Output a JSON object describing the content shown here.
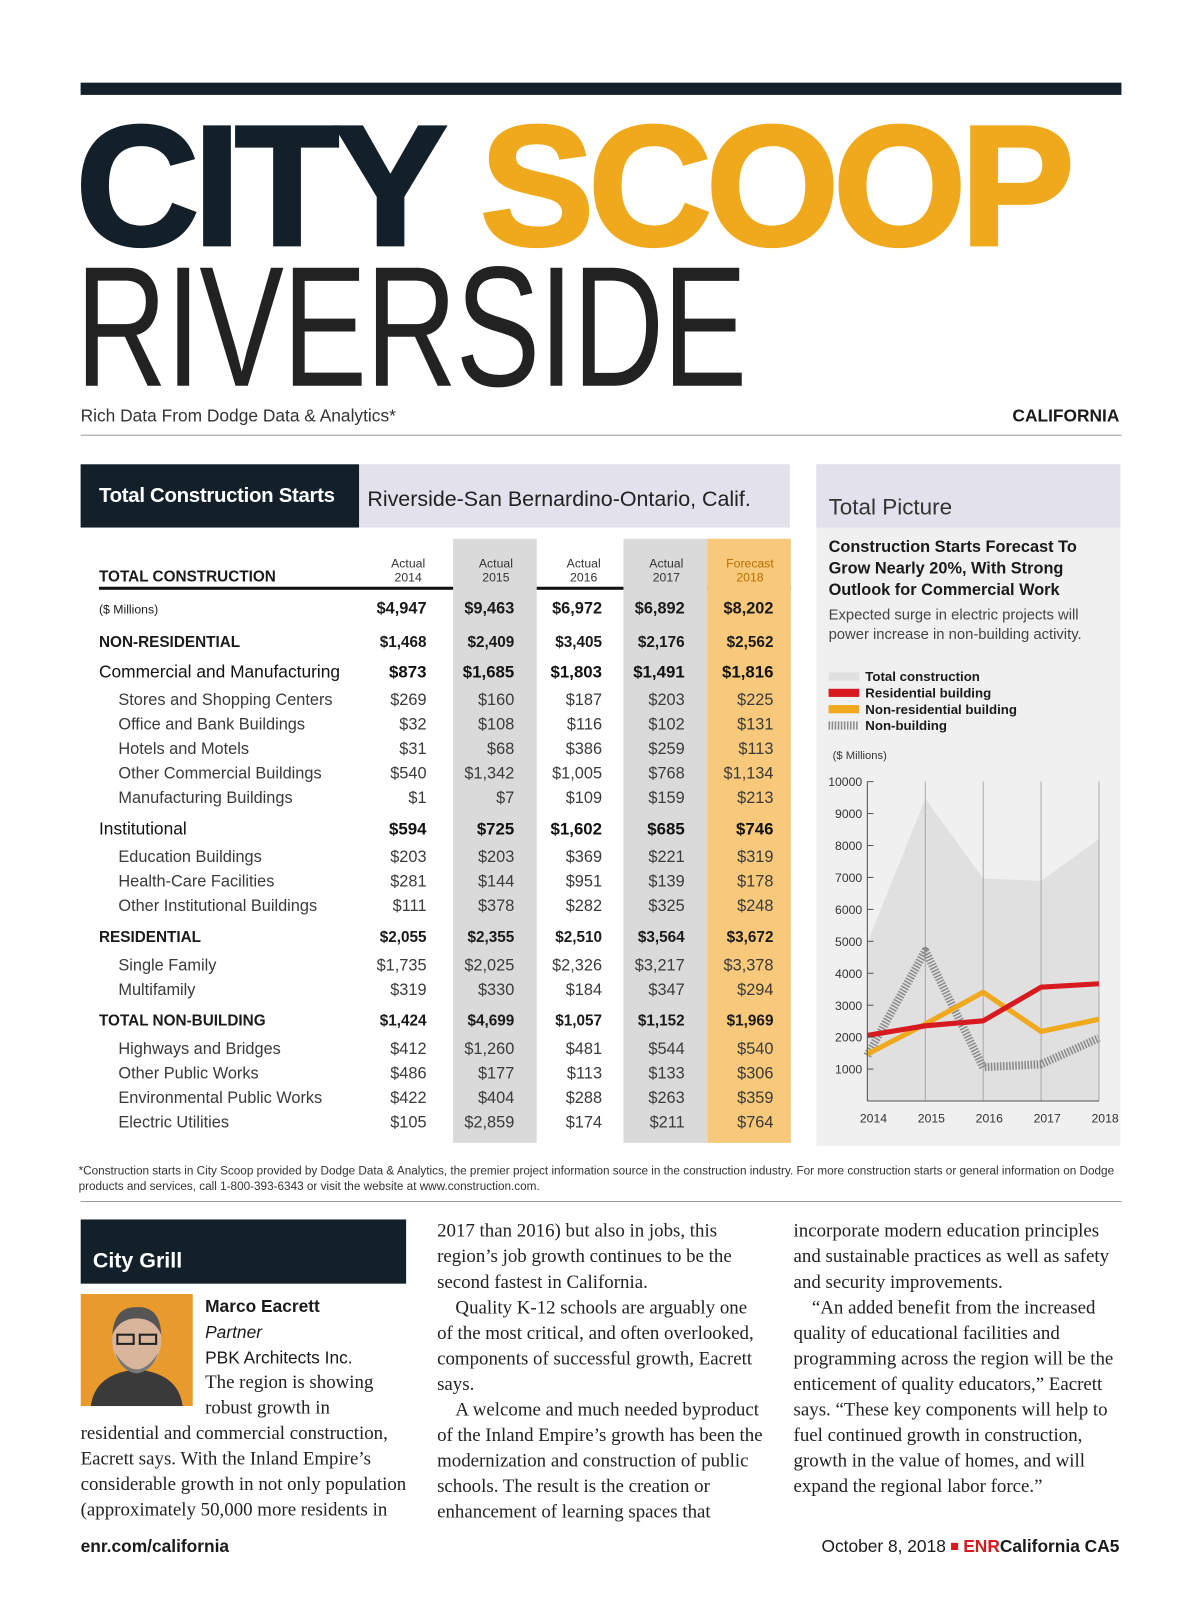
{
  "header": {
    "title_dark": "CITY",
    "title_accent": "SCOOP",
    "city": "RIVERSIDE",
    "tagline": "Rich Data From Dodge Data & Analytics*",
    "region": "CALIFORNIA"
  },
  "table": {
    "title": "Total Construction Starts",
    "region": "Riverside-San Bernardino-Ontario, Calif.",
    "columns": [
      {
        "status": "Actual",
        "year": "2014"
      },
      {
        "status": "Actual",
        "year": "2015"
      },
      {
        "status": "Actual",
        "year": "2016"
      },
      {
        "status": "Actual",
        "year": "2017"
      },
      {
        "status": "Forecast",
        "year": "2018"
      }
    ],
    "total": {
      "label": "TOTAL CONSTRUCTION",
      "unit": "($ Millions)",
      "values": [
        "$4,947",
        "$9,463",
        "$6,972",
        "$6,892",
        "$8,202"
      ]
    },
    "sections": [
      {
        "label": "NON-RESIDENTIAL",
        "values": [
          "$1,468",
          "$2,409",
          "$3,405",
          "$2,176",
          "$2,562"
        ],
        "groups": [
          {
            "label": "Commercial and Manufacturing",
            "values": [
              "$873",
              "$1,685",
              "$1,803",
              "$1,491",
              "$1,816"
            ],
            "items": [
              {
                "label": "Stores and Shopping Centers",
                "values": [
                  "$269",
                  "$160",
                  "$187",
                  "$203",
                  "$225"
                ]
              },
              {
                "label": "Office and Bank Buildings",
                "values": [
                  "$32",
                  "$108",
                  "$116",
                  "$102",
                  "$131"
                ]
              },
              {
                "label": "Hotels and Motels",
                "values": [
                  "$31",
                  "$68",
                  "$386",
                  "$259",
                  "$113"
                ]
              },
              {
                "label": "Other Commercial Buildings",
                "values": [
                  "$540",
                  "$1,342",
                  "$1,005",
                  "$768",
                  "$1,134"
                ]
              },
              {
                "label": "Manufacturing Buildings",
                "values": [
                  "$1",
                  "$7",
                  "$109",
                  "$159",
                  "$213"
                ]
              }
            ]
          },
          {
            "label": "Institutional",
            "values": [
              "$594",
              "$725",
              "$1,602",
              "$685",
              "$746"
            ],
            "items": [
              {
                "label": "Education Buildings",
                "values": [
                  "$203",
                  "$203",
                  "$369",
                  "$221",
                  "$319"
                ]
              },
              {
                "label": "Health-Care Facilities",
                "values": [
                  "$281",
                  "$144",
                  "$951",
                  "$139",
                  "$178"
                ]
              },
              {
                "label": "Other Institutional Buildings",
                "values": [
                  "$111",
                  "$378",
                  "$282",
                  "$325",
                  "$248"
                ]
              }
            ]
          }
        ]
      },
      {
        "label": "RESIDENTIAL",
        "values": [
          "$2,055",
          "$2,355",
          "$2,510",
          "$3,564",
          "$3,672"
        ],
        "items": [
          {
            "label": "Single Family",
            "values": [
              "$1,735",
              "$2,025",
              "$2,326",
              "$3,217",
              "$3,378"
            ]
          },
          {
            "label": "Multifamily",
            "values": [
              "$319",
              "$330",
              "$184",
              "$347",
              "$294"
            ]
          }
        ]
      },
      {
        "label": "TOTAL NON-BUILDING",
        "values": [
          "$1,424",
          "$4,699",
          "$1,057",
          "$1,152",
          "$1,969"
        ],
        "items": [
          {
            "label": "Highways and Bridges",
            "values": [
              "$412",
              "$1,260",
              "$481",
              "$544",
              "$540"
            ]
          },
          {
            "label": "Other Public Works",
            "values": [
              "$486",
              "$177",
              "$113",
              "$133",
              "$306"
            ]
          },
          {
            "label": "Environmental Public Works",
            "values": [
              "$422",
              "$404",
              "$288",
              "$263",
              "$359"
            ]
          },
          {
            "label": "Electric Utilities",
            "values": [
              "$105",
              "$2,859",
              "$174",
              "$211",
              "$764"
            ]
          }
        ]
      }
    ]
  },
  "chart_data": {
    "type": "line",
    "panel_title": "Total Picture",
    "title": "Construction Starts Forecast To Grow Nearly 20%, With Strong Outlook for Commercial Work",
    "subtitle": "Expected surge in electric projects will power increase in non-building activity.",
    "y_label": "($ Millions)",
    "categories": [
      "2014",
      "2015",
      "2016",
      "2017",
      "2018"
    ],
    "series": [
      {
        "name": "Total construction",
        "color": "#e0e0e0",
        "style": "area",
        "values": [
          4947,
          9463,
          6972,
          6892,
          8202
        ]
      },
      {
        "name": "Residential building",
        "color": "#d71920",
        "style": "line",
        "values": [
          2055,
          2355,
          2510,
          3564,
          3672
        ]
      },
      {
        "name": "Non-residential building",
        "color": "#f0a81c",
        "style": "line",
        "values": [
          1468,
          2409,
          3405,
          2176,
          2562
        ]
      },
      {
        "name": "Non-building",
        "color": "#8a8a8a",
        "style": "hatched",
        "values": [
          1424,
          4699,
          1057,
          1152,
          1969
        ]
      }
    ],
    "ylim": [
      0,
      10000
    ],
    "yticks": [
      1000,
      2000,
      3000,
      4000,
      5000,
      6000,
      7000,
      8000,
      9000,
      10000
    ]
  },
  "footnote": "*Construction starts in City Scoop provided by Dodge Data & Analytics, the premier project information source in the construction industry. For more construction starts or general information on Dodge products and services, call 1-800-393-6343 or visit the website at www.construction.com.",
  "article": {
    "header": "City Grill",
    "name": "Marco Eacrett",
    "role": "Partner",
    "company": "PBK Architects Inc.",
    "paragraphs": [
      "The region is showing robust growth in residential and commercial construction, Eacrett says. With the Inland Empire’s considerable growth in not only population (approximately 50,000 more residents in 2017 than 2016) but also in jobs, this region’s job growth continues to be the second fastest in California.",
      "Quality K-12 schools are arguably one of the most critical, and often overlooked, components of successful growth, Eacrett says.",
      "A welcome and much needed byproduct of the Inland Empire’s growth has been the modernization and construction of public schools. The result is the creation or enhancement of learning spaces that incorporate modern education principles and sustainable practices as well as safety and security improvements.",
      "“An added benefit from the increased quality of educational facilities and programming across the region will be the enticement of quality educators,” Eacrett says. “These key components will help to fuel continued growth in construction, growth in the value of homes, and will expand the regional labor force.”"
    ]
  },
  "footer": {
    "left": "enr.com/california",
    "date": "October 8, 2018",
    "brand": "ENR",
    "edition": "California CA5"
  }
}
